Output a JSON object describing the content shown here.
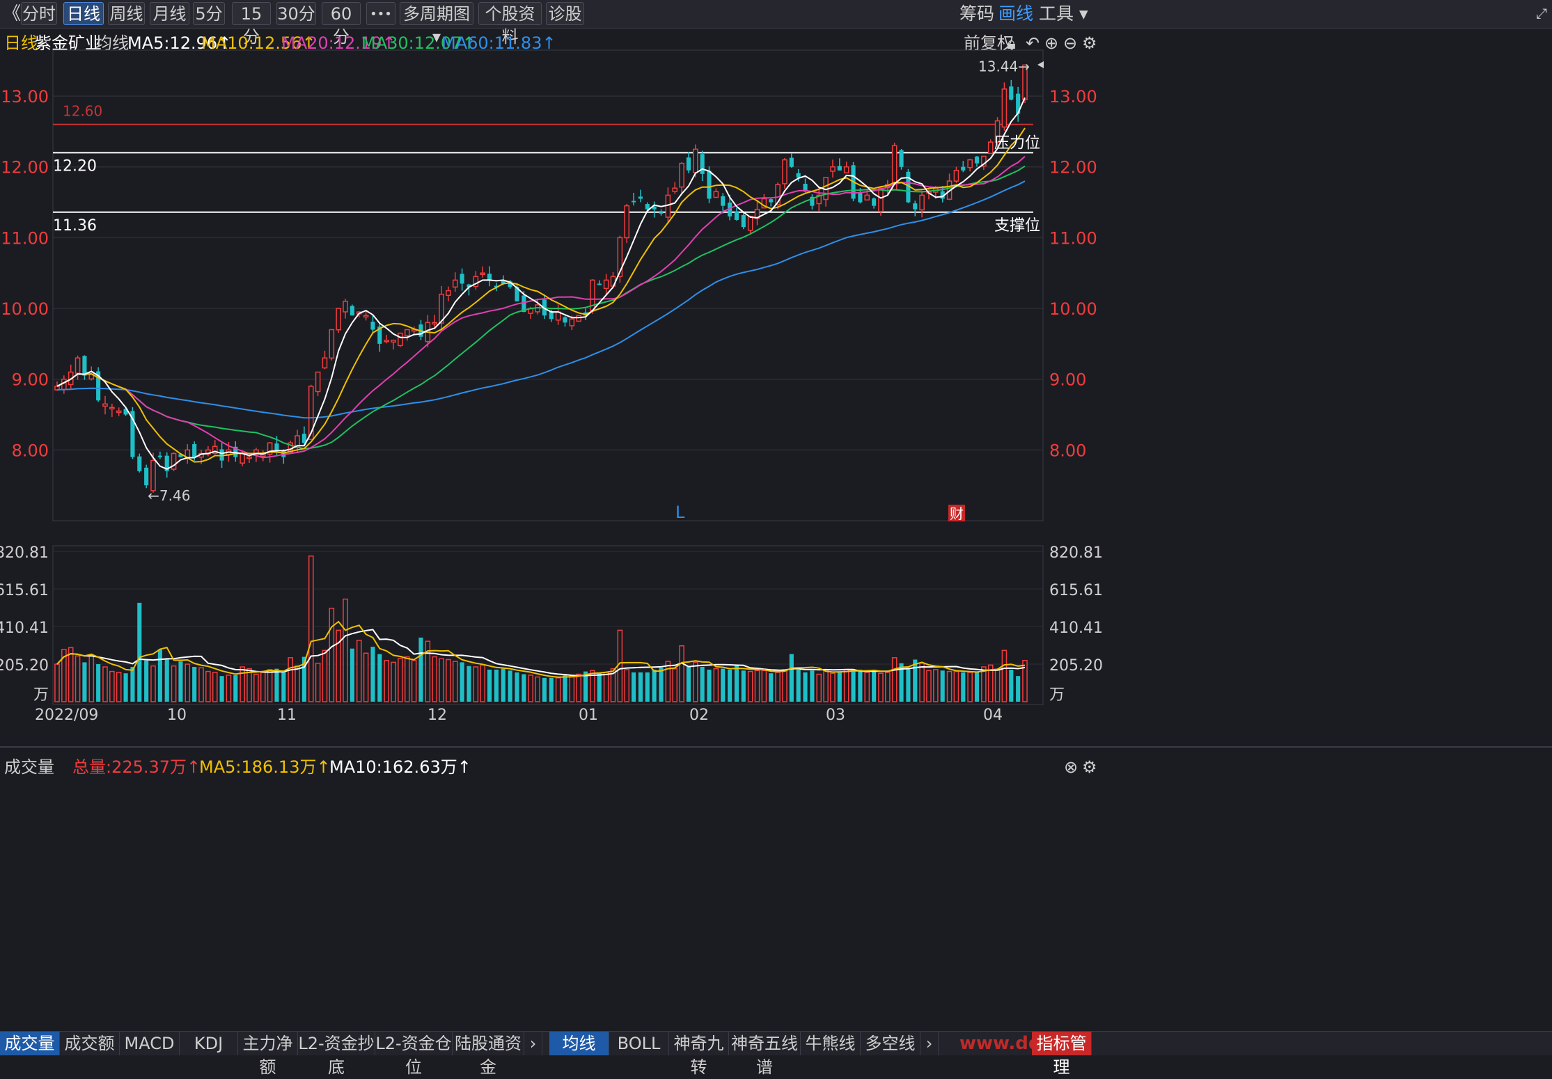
{
  "toolbar": {
    "back_glyph": "《",
    "buttons": [
      "分时",
      "日线",
      "周线",
      "月线",
      "5分",
      "15分",
      "30分",
      "60分",
      "•••",
      "多周期图 ▾",
      "个股资料",
      "诊股"
    ],
    "active": "日线",
    "right": [
      "筹码",
      "画线",
      "工具 ▾"
    ]
  },
  "info": {
    "period": "日线",
    "name": "紫金矿业",
    "ma_label": "均线",
    "ma5": "MA5:12.96↑",
    "ma10": "MA10:12.56↑",
    "ma20": "MA20:12.19↑",
    "ma30": "MA30:12.07↑",
    "ma60": "MA60:11.83↑",
    "adjust": "前复权"
  },
  "colors": {
    "up": "#f03c3c",
    "down": "#1fbfc7",
    "ma5": "#ffffff",
    "ma10": "#f0c000",
    "ma20": "#e040b0",
    "ma30": "#20c060",
    "ma60": "#2e8fe8"
  },
  "price_chart": {
    "y_ticks": [
      "13.00",
      "12.00",
      "11.00",
      "10.00",
      "9.00",
      "8.00"
    ],
    "y_tick_values": [
      13,
      12,
      11,
      10,
      9,
      8
    ],
    "ylim": [
      7.0,
      13.65
    ],
    "resistance_red": "12.60",
    "resistance_label": "12.20",
    "resistance_text": "压力位",
    "support_label": "11.36",
    "support_text": "支撑位",
    "high_annot": "13.44→",
    "low_annot": "←7.46",
    "marker_l": "L",
    "marker_cai": "财"
  },
  "volume": {
    "title": "成交量",
    "total": "总量:225.37万↑",
    "ma5": "MA5:186.13万↑",
    "ma10": "MA10:162.63万↑",
    "y_ticks": [
      "820.81",
      "615.61",
      "410.41",
      "205.20"
    ],
    "unit": "万"
  },
  "x_axis": [
    "2022/09",
    "10",
    "11",
    "12",
    "01",
    "02",
    "03",
    "04"
  ],
  "bottom_tabs_left": [
    "成交量",
    "成交额",
    "MACD",
    "KDJ",
    "主力净额",
    "L2-资金抄底",
    "L2-资金仓位",
    "陆股通资金"
  ],
  "bottom_tabs_right": [
    "均线",
    "BOLL",
    "神奇九转",
    "神奇五线谱",
    "牛熊线",
    "多空线"
  ],
  "bottom_right": "指标管理",
  "watermark": "www.dd...",
  "chart_data": {
    "type": "candlestick",
    "title": "紫金矿业 日线",
    "x_labels": [
      "2022/09",
      "10",
      "11",
      "12",
      "01",
      "02",
      "03",
      "04"
    ],
    "price_range": [
      7.46,
      13.44
    ],
    "key_levels": [
      12.6,
      12.2,
      11.36
    ],
    "closes": [
      8.9,
      9.0,
      9.1,
      9.3,
      9.05,
      9.1,
      8.7,
      8.65,
      8.6,
      8.55,
      8.5,
      7.9,
      7.7,
      7.5,
      7.85,
      7.9,
      7.7,
      7.95,
      7.9,
      8.0,
      7.9,
      7.95,
      8.0,
      8.05,
      7.85,
      8.0,
      7.9,
      7.95,
      7.9,
      8.0,
      7.95,
      8.1,
      8.0,
      7.9,
      8.1,
      8.2,
      8.1,
      8.9,
      9.1,
      9.3,
      9.7,
      10.0,
      10.1,
      9.9,
      9.95,
      9.9,
      9.7,
      9.5,
      9.55,
      9.55,
      9.65,
      9.7,
      9.7,
      9.6,
      9.8,
      9.8,
      10.2,
      10.25,
      10.4,
      10.35,
      10.3,
      10.45,
      10.5,
      10.4,
      10.3,
      10.35,
      10.3,
      10.1,
      9.95,
      10.0,
      10.05,
      9.9,
      9.85,
      9.95,
      9.8,
      9.85,
      9.9,
      9.9,
      10.4,
      10.35,
      10.4,
      10.45,
      11.0,
      11.45,
      11.5,
      11.55,
      11.4,
      11.4,
      11.35,
      11.6,
      11.7,
      12.05,
      11.95,
      12.25,
      11.9,
      11.55,
      11.65,
      11.45,
      11.3,
      11.25,
      11.15,
      11.3,
      11.4,
      11.55,
      11.5,
      11.75,
      12.1,
      12.0,
      11.85,
      11.65,
      11.45,
      11.6,
      11.85,
      12.0,
      11.95,
      12.0,
      11.55,
      11.5,
      11.6,
      11.45,
      11.7,
      11.75,
      12.3,
      12.0,
      11.5,
      11.4,
      11.6,
      11.65,
      11.7,
      11.55,
      11.8,
      11.95,
      11.95,
      12.1,
      12.05,
      12.15,
      12.35,
      12.65,
      13.1,
      12.95,
      12.75,
      13.44
    ],
    "volume_series": [
      {
        "name": "成交量",
        "values": [
          205,
          285,
          295,
          250,
          215,
          250,
          205,
          190,
          165,
          160,
          155,
          190,
          540,
          225,
          195,
          285,
          235,
          195,
          220,
          205,
          190,
          185,
          165,
          160,
          140,
          145,
          145,
          190,
          180,
          150,
          160,
          175,
          180,
          170,
          240,
          195,
          245,
          795,
          210,
          280,
          510,
          390,
          560,
          290,
          335,
          265,
          300,
          260,
          225,
          215,
          235,
          245,
          225,
          350,
          330,
          245,
          235,
          230,
          220,
          215,
          195,
          190,
          200,
          175,
          175,
          180,
          170,
          160,
          150,
          145,
          135,
          130,
          130,
          130,
          150,
          140,
          150,
          165,
          170,
          160,
          160,
          180,
          390,
          175,
          160,
          160,
          160,
          175,
          185,
          220,
          180,
          305,
          195,
          215,
          190,
          175,
          180,
          180,
          175,
          200,
          170,
          165,
          170,
          170,
          155,
          160,
          175,
          260,
          175,
          160,
          170,
          150,
          175,
          155,
          165,
          175,
          170,
          175,
          160,
          175,
          155,
          160,
          240,
          210,
          185,
          230,
          210,
          170,
          175,
          170,
          165,
          165,
          160,
          160,
          160,
          190,
          200,
          175,
          280,
          175,
          140,
          225
        ]
      },
      {
        "name": "MA5",
        "values": []
      },
      {
        "name": "MA10",
        "values": []
      }
    ],
    "volume_ylim": [
      0,
      820.81
    ],
    "moving_averages": [
      "MA5",
      "MA10",
      "MA20",
      "MA30",
      "MA60"
    ]
  }
}
